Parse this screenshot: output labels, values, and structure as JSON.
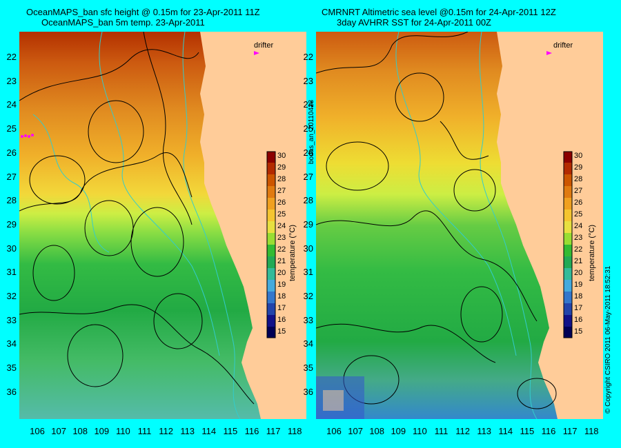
{
  "titles": {
    "left_line1": "OceanMAPS_ban sfc height @ 0.15m for 23-Apr-2011 11Z",
    "left_line2": "OceanMAPS_ban 5m temp. 23-Apr-2011",
    "right_line1": "CMRNRT Altimetric sea level  @0.15m  for 24-Apr-2011 12Z",
    "right_line2": "3day AVHRR SST for 24-Apr-2011 00Z"
  },
  "drifter_label": "drifter",
  "colorbar": {
    "label": "temperature (°C)",
    "ticks": [
      "30",
      "29",
      "28",
      "27",
      "26",
      "25",
      "24",
      "23",
      "22",
      "21",
      "20",
      "19",
      "18",
      "17",
      "16",
      "15"
    ]
  },
  "lat_labels": [
    "22",
    "23",
    "24",
    "25",
    "26",
    "27",
    "28",
    "29",
    "30",
    "31",
    "32",
    "33",
    "34",
    "35",
    "36"
  ],
  "lon_labels": [
    "106",
    "107",
    "108",
    "109",
    "110",
    "111",
    "112",
    "113",
    "114",
    "115",
    "116",
    "117",
    "118"
  ],
  "side_text_left": "bodas_an_20110423",
  "side_text_right": "© Copyright CSIRO 2011   06-May-2011 18:52:31",
  "colors": {
    "background": "#00ffff",
    "land": "#ffcc99",
    "contour": "#000000",
    "isobath": "#33cccc",
    "drifter": "#ff00ff"
  }
}
